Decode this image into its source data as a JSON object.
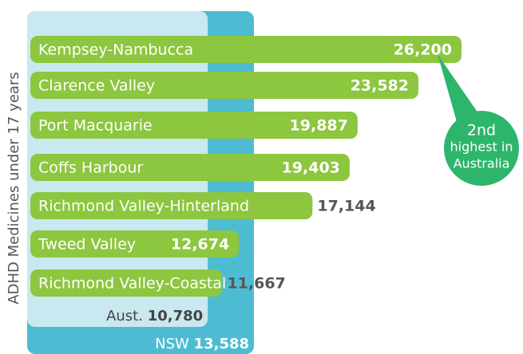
{
  "chart_data": {
    "type": "bar",
    "orientation": "horizontal",
    "y_axis_label": "ADHD Medicines under 17 years",
    "categories": [
      "Kempsey-Nambucca",
      "Clarence Valley",
      "Port Macquarie",
      "Coffs Harbour",
      "Richmond Valley-Hinterland",
      "Tweed Valley",
      "Richmond Valley-Coastal"
    ],
    "values": [
      26200,
      23582,
      19887,
      19403,
      17144,
      12674,
      11667
    ],
    "value_labels": [
      "26,200",
      "23,582",
      "19,887",
      "19,403",
      "17,144",
      "12,674",
      "11,667"
    ],
    "color": "#8dc63f",
    "xlim": [
      0,
      26200
    ],
    "reference_bands": [
      {
        "name": "Aust.",
        "value": 10780,
        "value_label": "10,780",
        "color": "#c9e8f0"
      },
      {
        "name": "NSW",
        "value": 13588,
        "value_label": "13,588",
        "color": "#4dbcd2"
      }
    ],
    "annotation": [
      "2nd",
      "highest in",
      "Australia"
    ],
    "annotation_color": "#2db56b"
  }
}
